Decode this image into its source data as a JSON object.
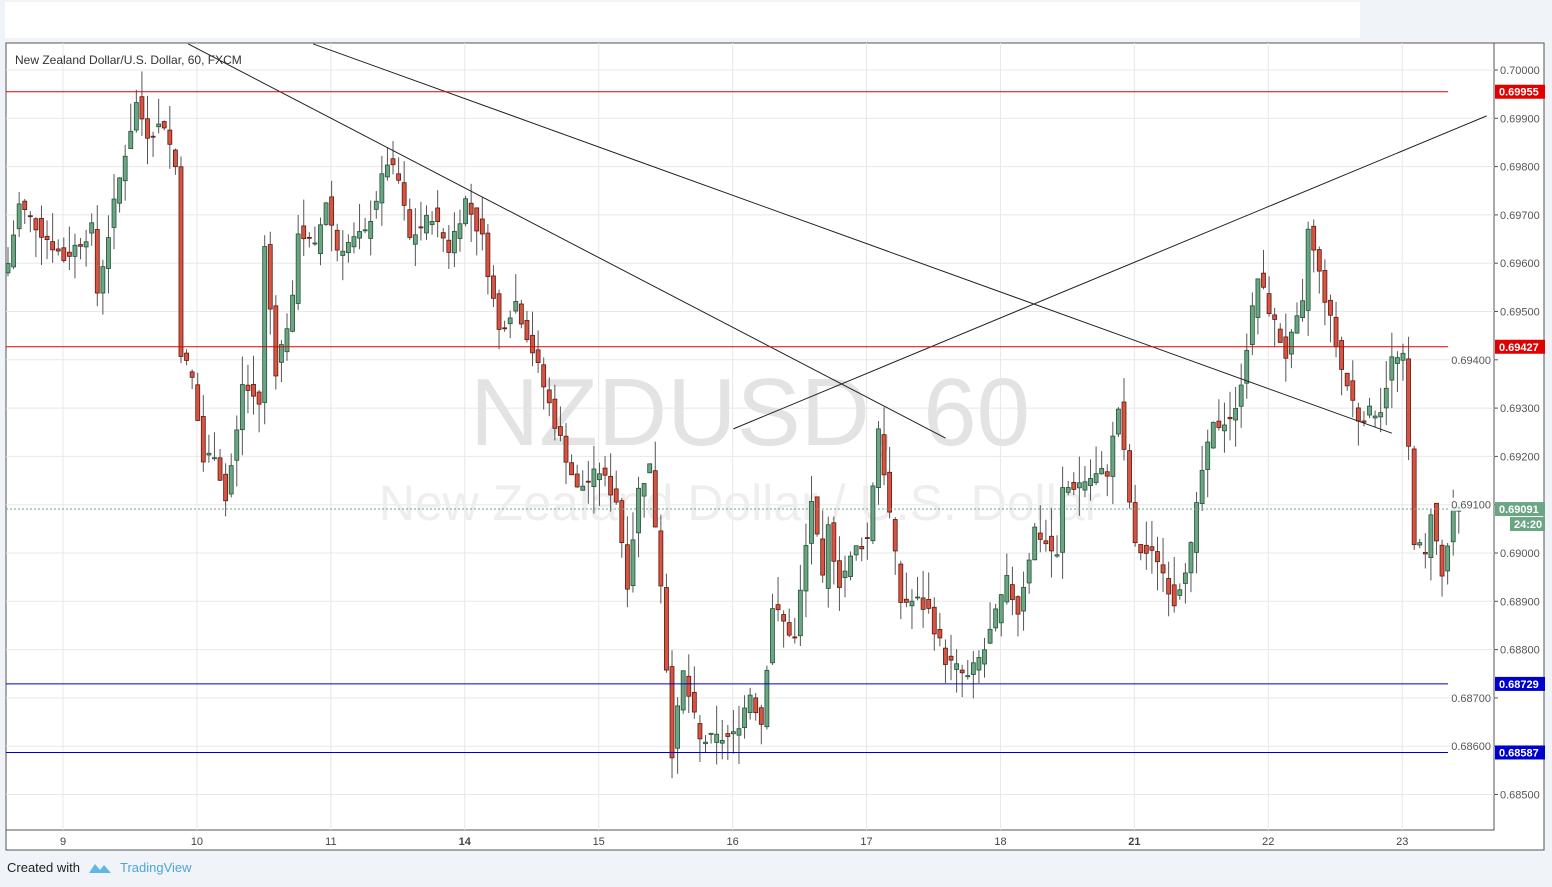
{
  "chart_data": {
    "type": "candlestick",
    "title": "New Zealand Dollar/U.S. Dollar, 60, FXCM",
    "watermark_symbol": "NZDUSD, 60",
    "watermark_name": "New Zealand Dollar / U.S. Dollar",
    "ylim": [
      0.6842,
      0.7006
    ],
    "y_ticks": [
      "0.70000",
      "0.69900",
      "0.69800",
      "0.69700",
      "0.69600",
      "0.69500",
      "0.69400",
      "0.69300",
      "0.69200",
      "0.69100",
      "0.69000",
      "0.68900",
      "0.68800",
      "0.68700",
      "0.68600",
      "0.68500"
    ],
    "x_ticks": [
      {
        "label": "9",
        "bar": 9.86,
        "bold": false
      },
      {
        "label": "10",
        "bar": 33.86,
        "bold": false
      },
      {
        "label": "11",
        "bar": 57.86,
        "bold": false
      },
      {
        "label": "14",
        "bar": 81.86,
        "bold": true
      },
      {
        "label": "15",
        "bar": 105.86,
        "bold": false
      },
      {
        "label": "16",
        "bar": 129.86,
        "bold": false
      },
      {
        "label": "17",
        "bar": 153.86,
        "bold": false
      },
      {
        "label": "18",
        "bar": 177.86,
        "bold": false
      },
      {
        "label": "21",
        "bar": 201.86,
        "bold": true
      },
      {
        "label": "22",
        "bar": 225.86,
        "bold": false
      },
      {
        "label": "23",
        "bar": 249.86,
        "bold": false
      }
    ],
    "close_path": [
      [
        0,
        0.696
      ],
      [
        2,
        0.6972
      ],
      [
        10,
        0.6961
      ],
      [
        15,
        0.6967
      ],
      [
        16,
        0.6954
      ],
      [
        19,
        0.6972
      ],
      [
        21,
        0.6983
      ],
      [
        23,
        0.6993
      ],
      [
        25,
        0.6987
      ],
      [
        28,
        0.6989
      ],
      [
        30,
        0.698
      ],
      [
        31,
        0.6942
      ],
      [
        33,
        0.6936
      ],
      [
        35,
        0.6919
      ],
      [
        37,
        0.6921
      ],
      [
        39,
        0.6911
      ],
      [
        41,
        0.6925
      ],
      [
        42,
        0.6935
      ],
      [
        45,
        0.6931
      ],
      [
        46,
        0.6963
      ],
      [
        48,
        0.6938
      ],
      [
        51,
        0.6952
      ],
      [
        52,
        0.6967
      ],
      [
        55,
        0.6963
      ],
      [
        57,
        0.6973
      ],
      [
        59,
        0.6963
      ],
      [
        64,
        0.6966
      ],
      [
        68,
        0.6981
      ],
      [
        70,
        0.6977
      ],
      [
        72,
        0.6965
      ],
      [
        76,
        0.697
      ],
      [
        79,
        0.6963
      ],
      [
        82,
        0.6973
      ],
      [
        85,
        0.6965
      ],
      [
        88,
        0.6946
      ],
      [
        91,
        0.6952
      ],
      [
        94,
        0.6942
      ],
      [
        98,
        0.6927
      ],
      [
        102,
        0.6913
      ],
      [
        106,
        0.6917
      ],
      [
        109,
        0.6911
      ],
      [
        111,
        0.6894
      ],
      [
        113,
        0.6913
      ],
      [
        115,
        0.6918
      ],
      [
        117,
        0.6894
      ],
      [
        119,
        0.6859
      ],
      [
        121,
        0.6875
      ],
      [
        124,
        0.6861
      ],
      [
        130,
        0.6862
      ],
      [
        133,
        0.6871
      ],
      [
        135,
        0.6865
      ],
      [
        137,
        0.6889
      ],
      [
        141,
        0.6882
      ],
      [
        144,
        0.6911
      ],
      [
        146,
        0.6894
      ],
      [
        147,
        0.6905
      ],
      [
        149,
        0.6894
      ],
      [
        152,
        0.6901
      ],
      [
        154,
        0.6903
      ],
      [
        156,
        0.6926
      ],
      [
        160,
        0.689
      ],
      [
        163,
        0.689
      ],
      [
        165,
        0.6888
      ],
      [
        168,
        0.6878
      ],
      [
        172,
        0.6874
      ],
      [
        175,
        0.688
      ],
      [
        179,
        0.6894
      ],
      [
        181,
        0.6888
      ],
      [
        184,
        0.6905
      ],
      [
        188,
        0.6899
      ],
      [
        189,
        0.6913
      ],
      [
        193,
        0.6915
      ],
      [
        197,
        0.6917
      ],
      [
        199,
        0.693
      ],
      [
        202,
        0.6901
      ],
      [
        206,
        0.6899
      ],
      [
        209,
        0.689
      ],
      [
        212,
        0.6901
      ],
      [
        214,
        0.6917
      ],
      [
        216,
        0.6926
      ],
      [
        220,
        0.6929
      ],
      [
        222,
        0.6943
      ],
      [
        224,
        0.6957
      ],
      [
        229,
        0.6941
      ],
      [
        232,
        0.6951
      ],
      [
        233,
        0.6967
      ],
      [
        236,
        0.6953
      ],
      [
        239,
        0.6938
      ],
      [
        242,
        0.6928
      ],
      [
        246,
        0.693
      ],
      [
        248,
        0.694
      ],
      [
        250,
        0.694
      ],
      [
        252,
        0.6903
      ],
      [
        254,
        0.6899
      ],
      [
        255,
        0.6909
      ],
      [
        257,
        0.6895
      ],
      [
        259,
        0.6908
      ],
      [
        260,
        0.69091
      ]
    ],
    "horizontal_lines": [
      {
        "price": 0.69955,
        "label": "0.69955",
        "color": "#e00000"
      },
      {
        "price": 0.69427,
        "label": "0.69427",
        "color": "#e00000"
      },
      {
        "price": 0.68729,
        "label": "0.68729",
        "color": "#0000cc"
      },
      {
        "price": 0.68587,
        "label": "0.68587",
        "color": "#0000cc"
      }
    ],
    "trend_lines": [
      {
        "from": [
          32.3,
          0.70054
        ],
        "to": [
          168,
          0.69238
        ]
      },
      {
        "from": [
          54.7,
          0.70054
        ],
        "to": [
          248,
          0.69248
        ]
      },
      {
        "from": [
          130,
          0.69257
        ],
        "to": [
          265,
          0.69905
        ]
      }
    ],
    "last_price": {
      "price": 0.69091,
      "label": "0.69091",
      "countdown": "24:20",
      "color": "#6ba583"
    },
    "colors": {
      "up": "#6ba583",
      "down": "#d75442",
      "up_border": "#225437",
      "down_border": "#5b1a13"
    },
    "grid": true
  },
  "footer": {
    "created_with": "Created with",
    "brand": "TradingView"
  }
}
